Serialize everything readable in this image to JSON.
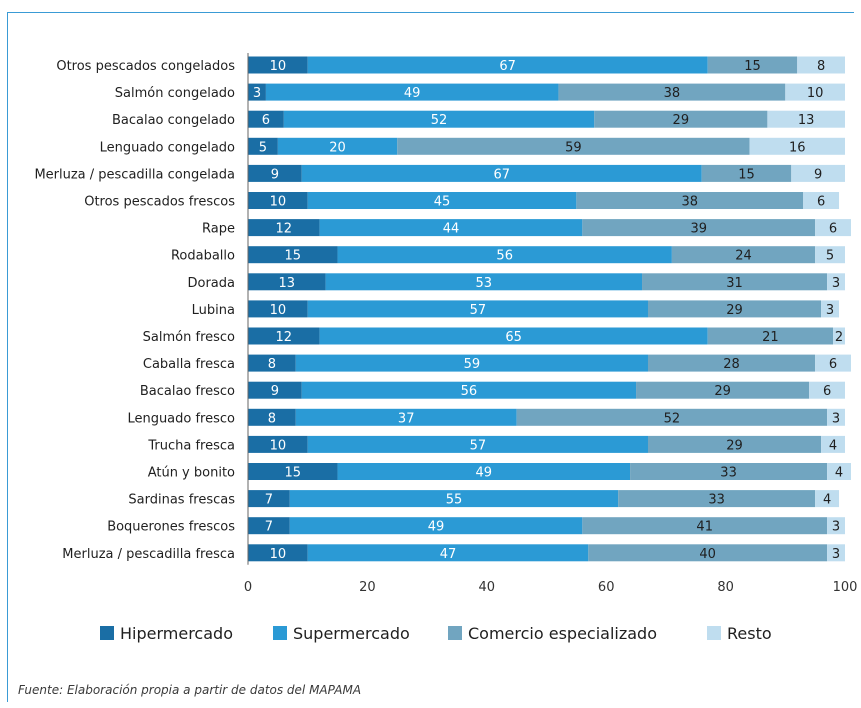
{
  "chart_data": {
    "type": "bar",
    "orientation": "horizontal",
    "stacked": true,
    "categories": [
      "Otros pescados congelados",
      "Salmón congelado",
      "Bacalao congelado",
      "Lenguado congelado",
      "Merluza / pescadilla congelada",
      "Otros pescados frescos",
      "Rape",
      "Rodaballo",
      "Dorada",
      "Lubina",
      "Salmón fresco",
      "Caballa fresca",
      "Bacalao fresco",
      "Lenguado fresco",
      "Trucha fresca",
      "Atún y bonito",
      "Sardinas frescas",
      "Boquerones frescos",
      "Merluza / pescadilla fresca"
    ],
    "series": [
      {
        "name": "Hipermercado",
        "color": "#1a6ea5",
        "values": [
          10,
          3,
          6,
          5,
          9,
          10,
          12,
          15,
          13,
          10,
          12,
          8,
          9,
          8,
          10,
          15,
          7,
          7,
          10
        ]
      },
      {
        "name": "Supermercado",
        "color": "#2b9ad5",
        "values": [
          67,
          49,
          52,
          20,
          67,
          45,
          44,
          56,
          53,
          57,
          65,
          59,
          56,
          37,
          57,
          49,
          55,
          49,
          47
        ]
      },
      {
        "name": "Comercio especializado",
        "color": "#71a5c0",
        "values": [
          15,
          38,
          29,
          59,
          15,
          38,
          39,
          24,
          31,
          29,
          21,
          28,
          29,
          52,
          29,
          33,
          33,
          41,
          40
        ]
      },
      {
        "name": "Resto",
        "color": "#bfddef",
        "values": [
          8,
          10,
          13,
          16,
          9,
          6,
          6,
          5,
          3,
          3,
          2,
          6,
          6,
          3,
          4,
          4,
          4,
          3,
          3
        ]
      }
    ],
    "xlim": [
      0,
      100
    ],
    "xticks": [
      "0",
      "20",
      "40",
      "60",
      "80",
      "100"
    ],
    "legend_position": "bottom",
    "grid": false
  },
  "source_note": "Fuente: Elaboración propia a partir de datos del MAPAMA"
}
